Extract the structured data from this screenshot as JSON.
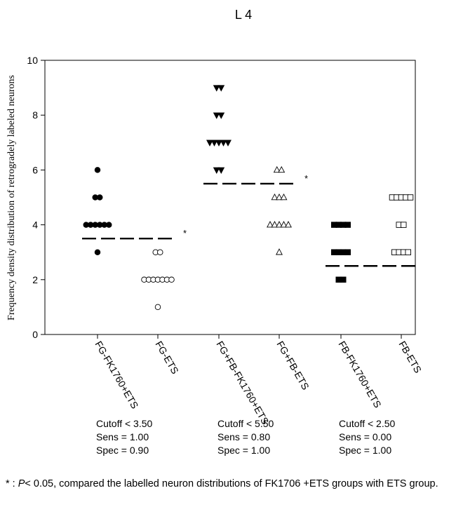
{
  "chart_data": {
    "type": "scatter",
    "title": "L 4",
    "ylabel": "Frequency density distribution of retrogradely labeled neurons",
    "xlabel": "",
    "ylim": [
      0,
      10
    ],
    "yticks": [
      0,
      2,
      4,
      6,
      8,
      10
    ],
    "categories": [
      "FG-FK1760+ETS",
      "FG-ETS",
      "FG+FB-FK1760+ETS",
      "FG+FB-ETS",
      "FB-FK1760+ETS",
      "FB-ETS"
    ],
    "series": [
      {
        "name": "FG-FK1760+ETS",
        "marker": "filled-circle",
        "points": [
          {
            "y": 6,
            "count": 1
          },
          {
            "y": 5,
            "count": 2
          },
          {
            "y": 4,
            "count": 6
          },
          {
            "y": 3,
            "count": 1
          }
        ]
      },
      {
        "name": "FG-ETS",
        "marker": "open-circle",
        "points": [
          {
            "y": 3,
            "count": 2
          },
          {
            "y": 2,
            "count": 7
          },
          {
            "y": 1,
            "count": 1
          }
        ]
      },
      {
        "name": "FG+FB-FK1760+ETS",
        "marker": "filled-triangle-down",
        "points": [
          {
            "y": 9,
            "count": 2
          },
          {
            "y": 8,
            "count": 2
          },
          {
            "y": 7,
            "count": 5
          },
          {
            "y": 6,
            "count": 2
          }
        ]
      },
      {
        "name": "FG+FB-ETS",
        "marker": "open-triangle-up",
        "points": [
          {
            "y": 6,
            "count": 2
          },
          {
            "y": 5,
            "count": 3
          },
          {
            "y": 4,
            "count": 5
          },
          {
            "y": 3,
            "count": 1
          }
        ]
      },
      {
        "name": "FB-FK1760+ETS",
        "marker": "filled-square",
        "points": [
          {
            "y": 4,
            "count": 4
          },
          {
            "y": 3,
            "count": 4
          },
          {
            "y": 2,
            "count": 2
          }
        ]
      },
      {
        "name": "FB-ETS",
        "marker": "open-square",
        "points": [
          {
            "y": 5,
            "count": 5
          },
          {
            "y": 4,
            "count": 2
          },
          {
            "y": 3,
            "count": 4
          }
        ]
      }
    ],
    "cutoff_lines": [
      {
        "from": "FG-FK1760+ETS",
        "to": "FG-ETS",
        "y": 3.5,
        "significance": "*"
      },
      {
        "from": "FG+FB-FK1760+ETS",
        "to": "FG+FB-ETS",
        "y": 5.5,
        "significance": "*"
      },
      {
        "from": "FB-FK1760+ETS",
        "to": "FB-ETS",
        "y": 2.5,
        "significance": ""
      }
    ],
    "annotations": [
      {
        "lines": [
          "Cutoff < 3.50",
          "Sens = 1.00",
          "Spec = 0.90"
        ]
      },
      {
        "lines": [
          "Cutoff < 5.50",
          "Sens = 0.80",
          "Spec = 1.00"
        ]
      },
      {
        "lines": [
          "Cutoff < 2.50",
          "Sens = 0.00",
          "Spec = 1.00"
        ]
      }
    ]
  },
  "footnote": {
    "prefix": "* : ",
    "p_symbol": "P",
    "text": "< 0.05, compared the labelled neuron distributions of FK1706 +ETS groups with ETS group."
  }
}
